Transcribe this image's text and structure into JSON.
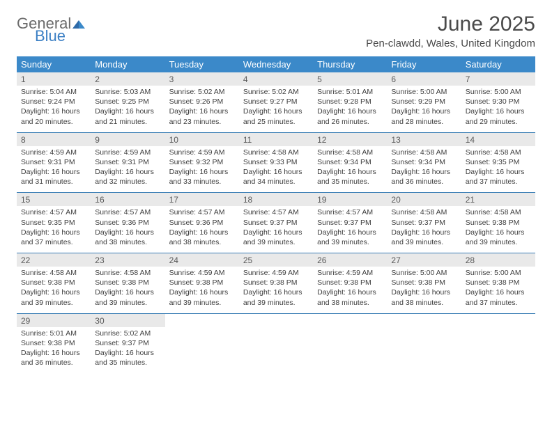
{
  "logo": {
    "word1": "General",
    "word2": "Blue"
  },
  "title": "June 2025",
  "location": "Pen-clawdd, Wales, United Kingdom",
  "colors": {
    "header_bg": "#3b89c9",
    "header_text": "#ffffff",
    "daynum_bg": "#e9e9e9",
    "rule": "#3b7fb5",
    "logo_gray": "#6a6a6a",
    "logo_blue": "#3b7fc4"
  },
  "day_labels": [
    "Sunday",
    "Monday",
    "Tuesday",
    "Wednesday",
    "Thursday",
    "Friday",
    "Saturday"
  ],
  "weeks": [
    [
      {
        "n": "1",
        "sr": "5:04 AM",
        "ss": "9:24 PM",
        "dl": "16 hours and 20 minutes."
      },
      {
        "n": "2",
        "sr": "5:03 AM",
        "ss": "9:25 PM",
        "dl": "16 hours and 21 minutes."
      },
      {
        "n": "3",
        "sr": "5:02 AM",
        "ss": "9:26 PM",
        "dl": "16 hours and 23 minutes."
      },
      {
        "n": "4",
        "sr": "5:02 AM",
        "ss": "9:27 PM",
        "dl": "16 hours and 25 minutes."
      },
      {
        "n": "5",
        "sr": "5:01 AM",
        "ss": "9:28 PM",
        "dl": "16 hours and 26 minutes."
      },
      {
        "n": "6",
        "sr": "5:00 AM",
        "ss": "9:29 PM",
        "dl": "16 hours and 28 minutes."
      },
      {
        "n": "7",
        "sr": "5:00 AM",
        "ss": "9:30 PM",
        "dl": "16 hours and 29 minutes."
      }
    ],
    [
      {
        "n": "8",
        "sr": "4:59 AM",
        "ss": "9:31 PM",
        "dl": "16 hours and 31 minutes."
      },
      {
        "n": "9",
        "sr": "4:59 AM",
        "ss": "9:31 PM",
        "dl": "16 hours and 32 minutes."
      },
      {
        "n": "10",
        "sr": "4:59 AM",
        "ss": "9:32 PM",
        "dl": "16 hours and 33 minutes."
      },
      {
        "n": "11",
        "sr": "4:58 AM",
        "ss": "9:33 PM",
        "dl": "16 hours and 34 minutes."
      },
      {
        "n": "12",
        "sr": "4:58 AM",
        "ss": "9:34 PM",
        "dl": "16 hours and 35 minutes."
      },
      {
        "n": "13",
        "sr": "4:58 AM",
        "ss": "9:34 PM",
        "dl": "16 hours and 36 minutes."
      },
      {
        "n": "14",
        "sr": "4:58 AM",
        "ss": "9:35 PM",
        "dl": "16 hours and 37 minutes."
      }
    ],
    [
      {
        "n": "15",
        "sr": "4:57 AM",
        "ss": "9:35 PM",
        "dl": "16 hours and 37 minutes."
      },
      {
        "n": "16",
        "sr": "4:57 AM",
        "ss": "9:36 PM",
        "dl": "16 hours and 38 minutes."
      },
      {
        "n": "17",
        "sr": "4:57 AM",
        "ss": "9:36 PM",
        "dl": "16 hours and 38 minutes."
      },
      {
        "n": "18",
        "sr": "4:57 AM",
        "ss": "9:37 PM",
        "dl": "16 hours and 39 minutes."
      },
      {
        "n": "19",
        "sr": "4:57 AM",
        "ss": "9:37 PM",
        "dl": "16 hours and 39 minutes."
      },
      {
        "n": "20",
        "sr": "4:58 AM",
        "ss": "9:37 PM",
        "dl": "16 hours and 39 minutes."
      },
      {
        "n": "21",
        "sr": "4:58 AM",
        "ss": "9:38 PM",
        "dl": "16 hours and 39 minutes."
      }
    ],
    [
      {
        "n": "22",
        "sr": "4:58 AM",
        "ss": "9:38 PM",
        "dl": "16 hours and 39 minutes."
      },
      {
        "n": "23",
        "sr": "4:58 AM",
        "ss": "9:38 PM",
        "dl": "16 hours and 39 minutes."
      },
      {
        "n": "24",
        "sr": "4:59 AM",
        "ss": "9:38 PM",
        "dl": "16 hours and 39 minutes."
      },
      {
        "n": "25",
        "sr": "4:59 AM",
        "ss": "9:38 PM",
        "dl": "16 hours and 39 minutes."
      },
      {
        "n": "26",
        "sr": "4:59 AM",
        "ss": "9:38 PM",
        "dl": "16 hours and 38 minutes."
      },
      {
        "n": "27",
        "sr": "5:00 AM",
        "ss": "9:38 PM",
        "dl": "16 hours and 38 minutes."
      },
      {
        "n": "28",
        "sr": "5:00 AM",
        "ss": "9:38 PM",
        "dl": "16 hours and 37 minutes."
      }
    ],
    [
      {
        "n": "29",
        "sr": "5:01 AM",
        "ss": "9:38 PM",
        "dl": "16 hours and 36 minutes."
      },
      {
        "n": "30",
        "sr": "5:02 AM",
        "ss": "9:37 PM",
        "dl": "16 hours and 35 minutes."
      },
      null,
      null,
      null,
      null,
      null
    ]
  ],
  "labels": {
    "sunrise": "Sunrise: ",
    "sunset": "Sunset: ",
    "daylight": "Daylight: "
  },
  "fonts": {
    "title_size": 30,
    "location_size": 15,
    "th_size": 13,
    "daynum_size": 12,
    "body_size": 10.5
  }
}
